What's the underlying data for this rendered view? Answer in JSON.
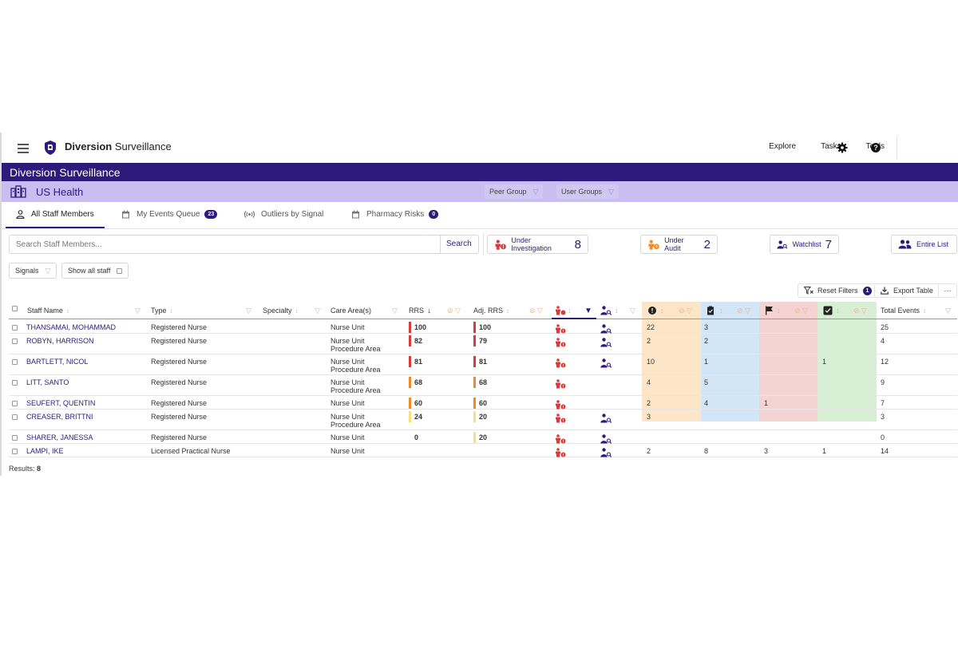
{
  "nav": {
    "brand_bold": "Diversion",
    "brand_rest": "Surveillance",
    "links": [
      "Explore",
      "Tasks",
      "Tools"
    ]
  },
  "title": "Diversion Surveillance",
  "org": {
    "name": "US Health",
    "filters": [
      "Peer Group",
      "User Groups"
    ]
  },
  "tabs": [
    {
      "label": "All Staff Members"
    },
    {
      "label": "My Events Queue",
      "badge": "23"
    },
    {
      "label": "Outliers by Signal"
    },
    {
      "label": "Pharmacy Risks",
      "badge": "0"
    }
  ],
  "search": {
    "placeholder": "Search Staff Members...",
    "button": "Search"
  },
  "stats": [
    {
      "label": "Under Investigation",
      "value": "8"
    },
    {
      "label": "Under Audit",
      "value": "2"
    },
    {
      "label": "Watchlist",
      "value": "7"
    },
    {
      "label": "Entire List"
    }
  ],
  "chips": {
    "signals": "Signals",
    "show_all": "Show all staff"
  },
  "toolbar": {
    "reset": "Reset Filters",
    "reset_badge": "1",
    "export": "Export Table",
    "more": "···"
  },
  "columns": {
    "name": "Staff Name",
    "type": "Type",
    "specialty": "Specialty",
    "care": "Care Area(s)",
    "rrs": "RRS",
    "adj": "Adj. RRS",
    "total": "Total Events"
  },
  "colors": {
    "brand": "#2e1a7a",
    "red": "#d93a3a",
    "orange": "#f08a24",
    "yellow": "#f5e27a",
    "peach": "#fde6c8",
    "blue": "#d3e6f7",
    "pink": "#f5d3d3",
    "green": "#d8efd6"
  },
  "rows": [
    {
      "name": "THANSAMAI, MOHAMMAD",
      "type": "Registered Nurse",
      "care1": "Nurse Unit",
      "care2": "",
      "rrs": "100",
      "rrs_color": "red",
      "adj": "100",
      "adj_color": "red",
      "inv": true,
      "watch": true,
      "c1": "22",
      "c2": "3",
      "c3": "",
      "c4": "",
      "total": "25"
    },
    {
      "name": "ROBYN, HARRISON",
      "type": "Registered Nurse",
      "care1": "Nurse Unit",
      "care2": "Procedure Area",
      "rrs": "82",
      "rrs_color": "red",
      "adj": "79",
      "adj_color": "red",
      "inv": true,
      "watch": true,
      "c1": "2",
      "c2": "2",
      "c3": "",
      "c4": "",
      "total": "4"
    },
    {
      "name": "BARTLETT, NICOL",
      "type": "Registered Nurse",
      "care1": "Nurse Unit",
      "care2": "Procedure Area",
      "rrs": "81",
      "rrs_color": "red",
      "adj": "81",
      "adj_color": "red",
      "inv": true,
      "watch": true,
      "c1": "10",
      "c2": "1",
      "c3": "",
      "c4": "1",
      "total": "12"
    },
    {
      "name": "LITT, SANTO",
      "type": "Registered Nurse",
      "care1": "Nurse Unit",
      "care2": "Procedure Area",
      "rrs": "68",
      "rrs_color": "orange",
      "adj": "68",
      "adj_color": "orange",
      "inv": true,
      "watch": false,
      "c1": "4",
      "c2": "5",
      "c3": "",
      "c4": "",
      "total": "9"
    },
    {
      "name": "SEUFERT, QUENTIN",
      "type": "Registered Nurse",
      "care1": "Nurse Unit",
      "care2": "",
      "rrs": "60",
      "rrs_color": "orange",
      "adj": "60",
      "adj_color": "orange",
      "inv": true,
      "watch": false,
      "c1": "2",
      "c2": "4",
      "c3": "1",
      "c4": "",
      "total": "7"
    },
    {
      "name": "CREASER, BRITTNI",
      "type": "Registered Nurse",
      "care1": "Nurse Unit",
      "care2": "Procedure Area",
      "rrs": "24",
      "rrs_color": "yellow",
      "adj": "20",
      "adj_color": "yellow",
      "inv": true,
      "watch": true,
      "c1": "3",
      "c2": "",
      "c3": "",
      "c4": "",
      "total": "3"
    },
    {
      "name": "SHARER, JANESSA",
      "type": "Registered Nurse",
      "care1": "Nurse Unit",
      "care2": "",
      "rrs": "0",
      "rrs_color": "",
      "adj": "20",
      "adj_color": "yellow",
      "inv": true,
      "watch": true,
      "c1": "",
      "c2": "",
      "c3": "",
      "c4": "",
      "total": "0"
    },
    {
      "name": "LAMPI, IKE",
      "type": "Licensed Practical Nurse",
      "care1": "Nurse Unit",
      "care2": "",
      "rrs": "",
      "rrs_color": "",
      "adj": "",
      "adj_color": "",
      "inv": true,
      "watch": true,
      "c1": "2",
      "c2": "8",
      "c3": "3",
      "c4": "1",
      "total": "14"
    }
  ],
  "results": {
    "label": "Results:",
    "count": "8"
  }
}
